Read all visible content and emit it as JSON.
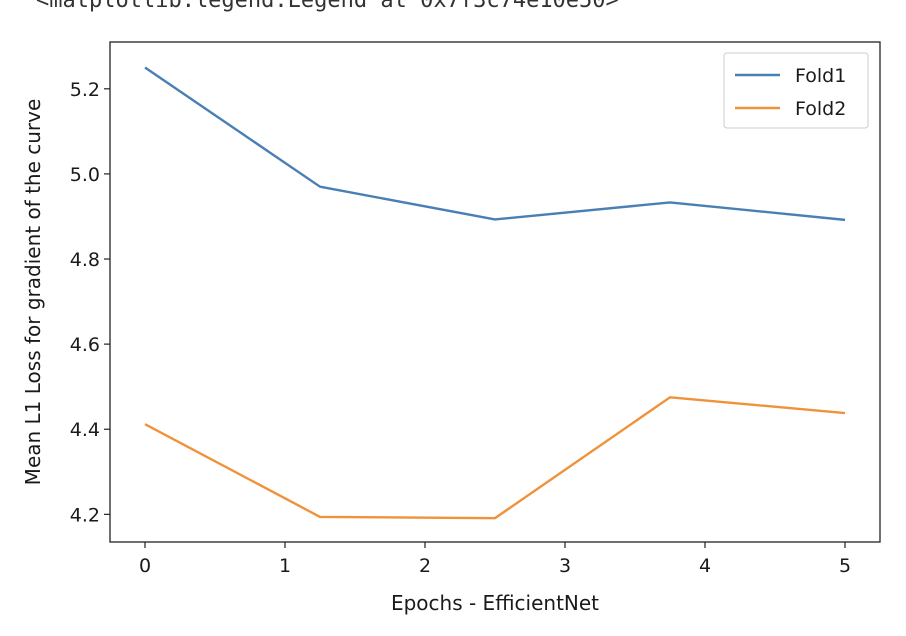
{
  "header_text": "<matplotlib.legend.Legend at 0x7f3c74e10e50>",
  "chart_data": {
    "type": "line",
    "xlabel": "Epochs - EfficientNet",
    "ylabel": "Mean L1 Loss for gradient of the curve",
    "xlim": [
      -0.25,
      5.25
    ],
    "ylim": [
      4.135,
      5.31
    ],
    "xticks": [
      0,
      1,
      2,
      3,
      4,
      5
    ],
    "yticks": [
      4.2,
      4.4,
      4.6,
      4.8,
      5.0,
      5.2
    ],
    "ytick_labels": [
      "4.2",
      "4.4",
      "4.6",
      "4.8",
      "5.0",
      "5.2"
    ],
    "xtick_labels": [
      "0",
      "1",
      "2",
      "3",
      "4",
      "5"
    ],
    "legend_position": "top-right",
    "grid": false,
    "x": [
      0,
      1.25,
      2.5,
      3.75,
      5
    ],
    "series": [
      {
        "name": "Fold1",
        "color": "#4a7fb5",
        "values": [
          5.25,
          4.97,
          4.893,
          4.933,
          4.892
        ]
      },
      {
        "name": "Fold2",
        "color": "#f0923a",
        "values": [
          4.412,
          4.194,
          4.191,
          4.475,
          4.438
        ]
      }
    ]
  }
}
